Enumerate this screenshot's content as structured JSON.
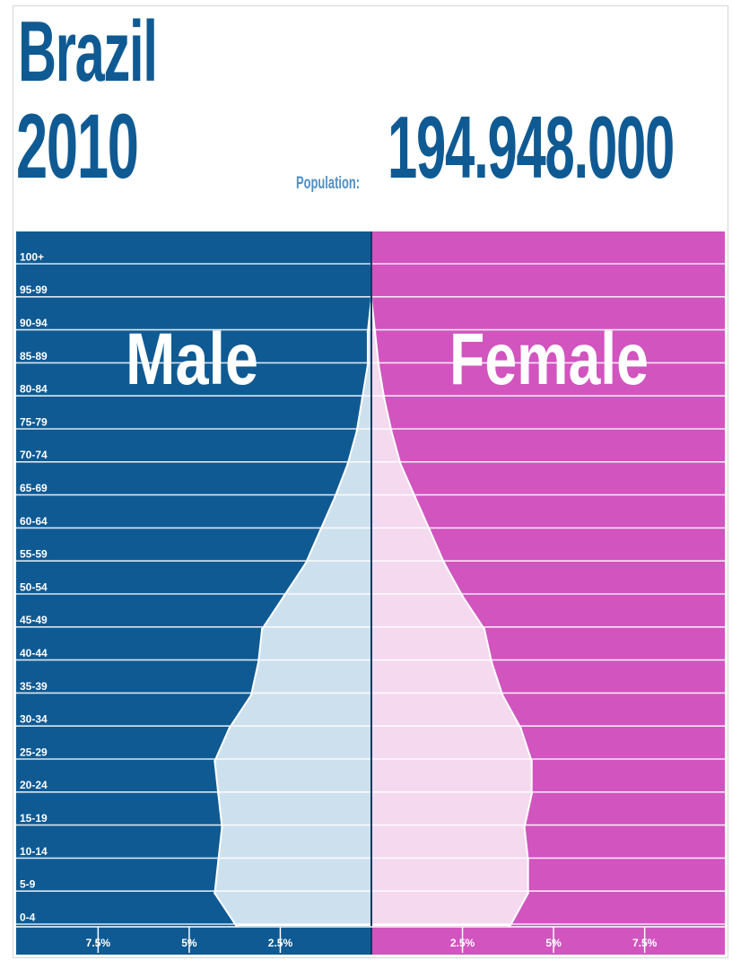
{
  "header": {
    "country": "Brazil",
    "year": "2010",
    "population_label": "Population:",
    "population_value": "194.948.000"
  },
  "colors": {
    "male_bg": "#0f5a93",
    "female_bg": "#d154bf",
    "male_fill": "#cde0ed",
    "female_fill": "#f4d9ef",
    "title_blue": "#0f5a93"
  },
  "chart_data": {
    "type": "population-pyramid",
    "side_titles": {
      "left": "Male",
      "right": "Female"
    },
    "age_groups": [
      "100+",
      "95-99",
      "90-94",
      "85-89",
      "80-84",
      "75-79",
      "70-74",
      "65-69",
      "60-64",
      "55-59",
      "50-54",
      "45-49",
      "40-44",
      "35-39",
      "30-34",
      "25-29",
      "20-24",
      "15-19",
      "10-14",
      "5-9",
      "0-4"
    ],
    "series": [
      {
        "name": "Male",
        "values": [
          0.0,
          0.0,
          0.1,
          0.1,
          0.25,
          0.4,
          0.65,
          1.0,
          1.4,
          1.8,
          2.4,
          3.0,
          3.1,
          3.3,
          3.9,
          4.3,
          4.2,
          4.1,
          4.2,
          4.3,
          3.7
        ]
      },
      {
        "name": "Female",
        "values": [
          0.0,
          0.0,
          0.1,
          0.2,
          0.35,
          0.55,
          0.8,
          1.2,
          1.6,
          2.0,
          2.5,
          3.1,
          3.3,
          3.6,
          4.1,
          4.4,
          4.4,
          4.2,
          4.3,
          4.3,
          3.8
        ]
      }
    ],
    "x_unit": "percent of population",
    "x_ticks": [
      {
        "label": "7.5%",
        "value": -7.5
      },
      {
        "label": "5%",
        "value": -5
      },
      {
        "label": "2.5%",
        "value": -2.5
      },
      {
        "label": "2.5%",
        "value": 2.5
      },
      {
        "label": "5%",
        "value": 5
      },
      {
        "label": "7.5%",
        "value": 7.5
      }
    ],
    "xlim": [
      -9.7,
      9.7
    ],
    "grid": true
  }
}
